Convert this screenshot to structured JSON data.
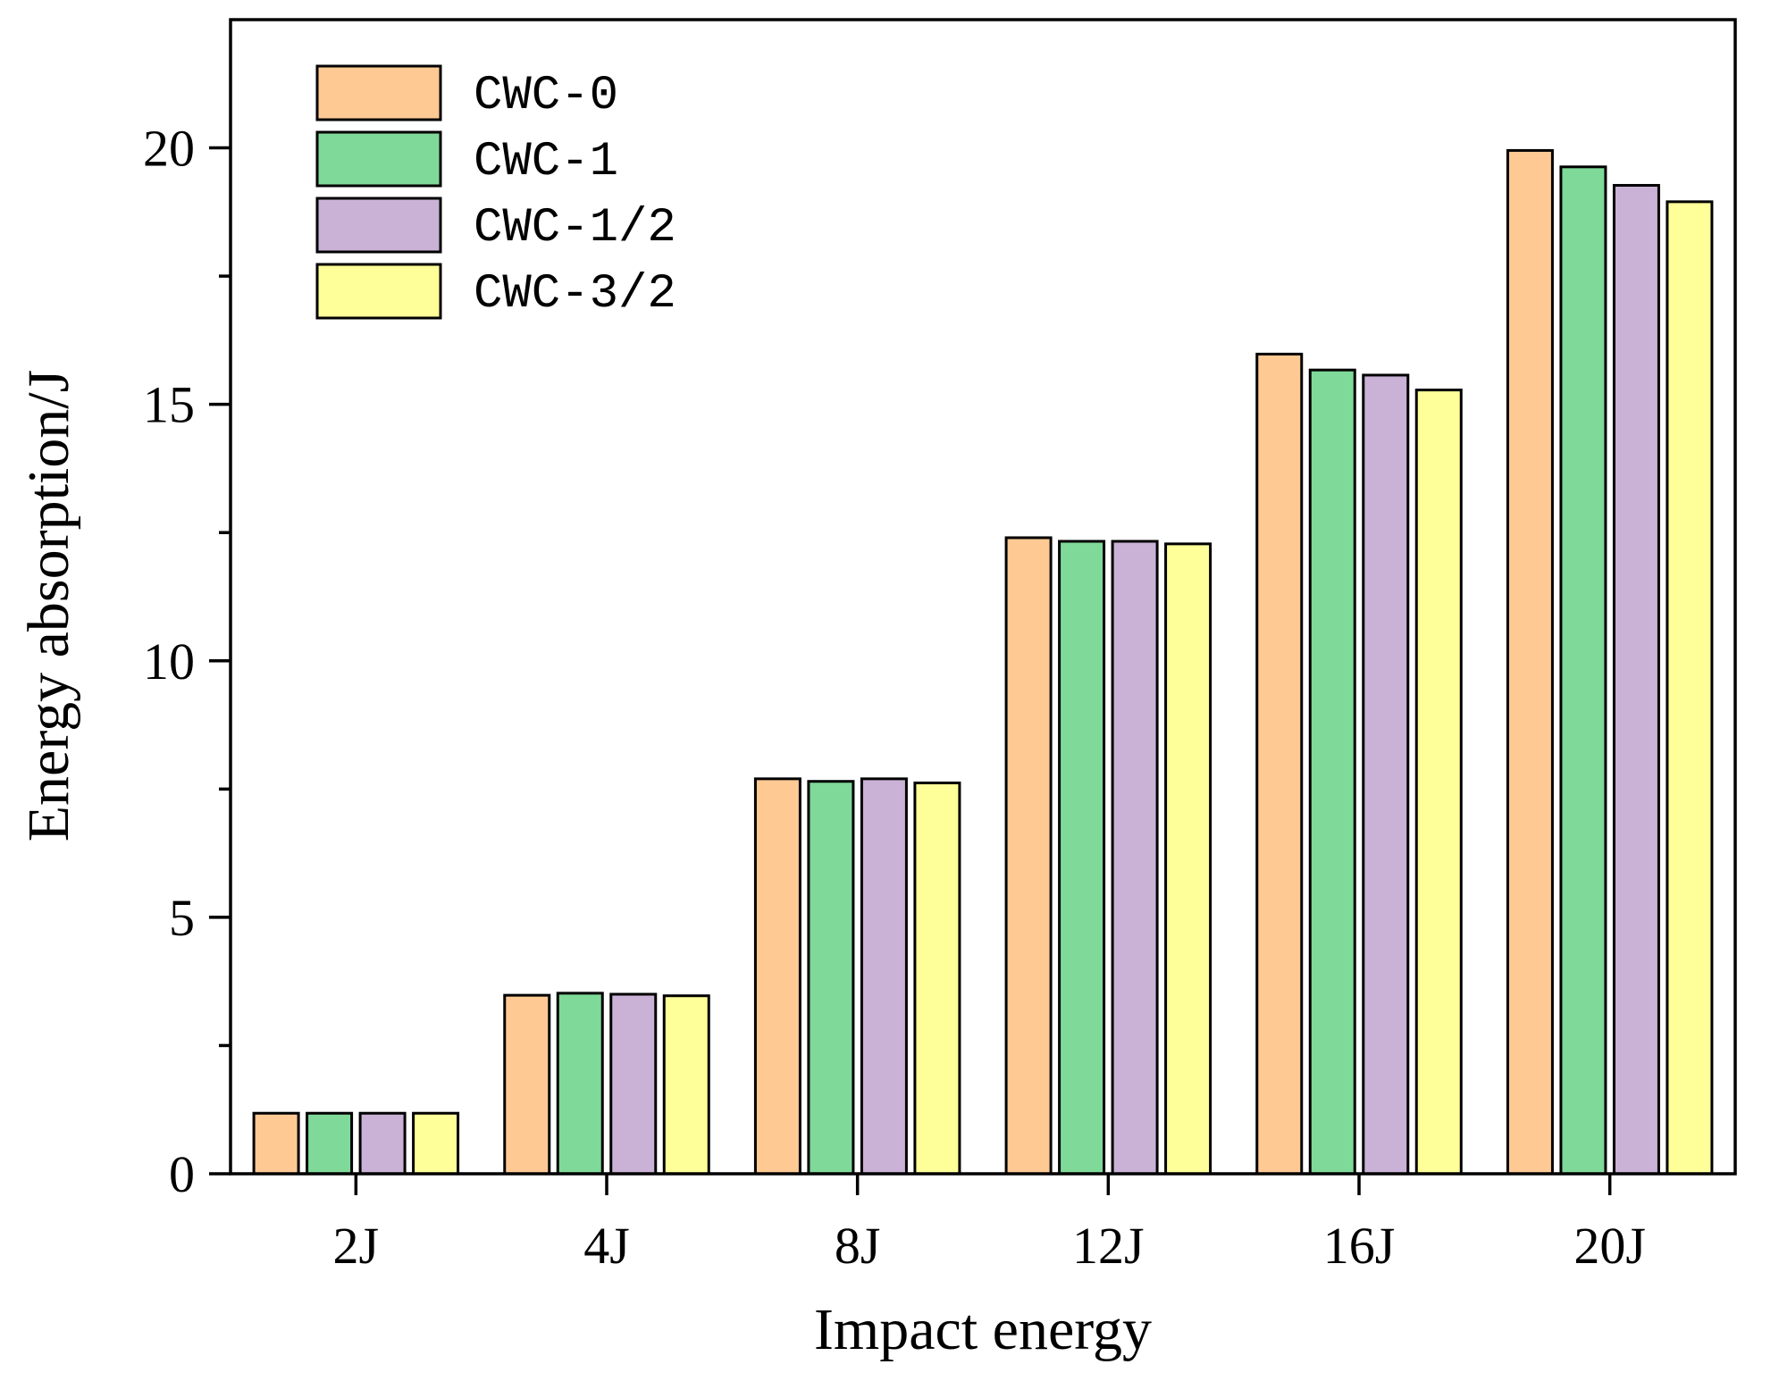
{
  "chart_data": {
    "type": "bar",
    "xlabel": "Impact energy",
    "ylabel": "Energy absorption/J",
    "categories": [
      "2J",
      "4J",
      "8J",
      "12J",
      "16J",
      "20J"
    ],
    "ylim": [
      0,
      22.5
    ],
    "yticks": [
      0,
      5,
      10,
      15,
      20
    ],
    "yminor_ticks": [
      2.5,
      7.5,
      12.5,
      17.5
    ],
    "grid": false,
    "legend_position": "top-left",
    "series": [
      {
        "name": "CWC-0",
        "color": "#FFC994",
        "values": [
          1.18,
          3.48,
          7.7,
          12.4,
          15.98,
          19.95
        ]
      },
      {
        "name": "CWC-1",
        "color": "#7FD998",
        "values": [
          1.18,
          3.52,
          7.65,
          12.33,
          15.67,
          19.63
        ]
      },
      {
        "name": "CWC-1/2",
        "color": "#C9B2D6",
        "values": [
          1.18,
          3.5,
          7.7,
          12.33,
          15.57,
          19.27
        ]
      },
      {
        "name": "CWC-3/2",
        "color": "#FFFF99",
        "values": [
          1.18,
          3.47,
          7.62,
          12.28,
          15.28,
          18.95
        ]
      }
    ]
  }
}
